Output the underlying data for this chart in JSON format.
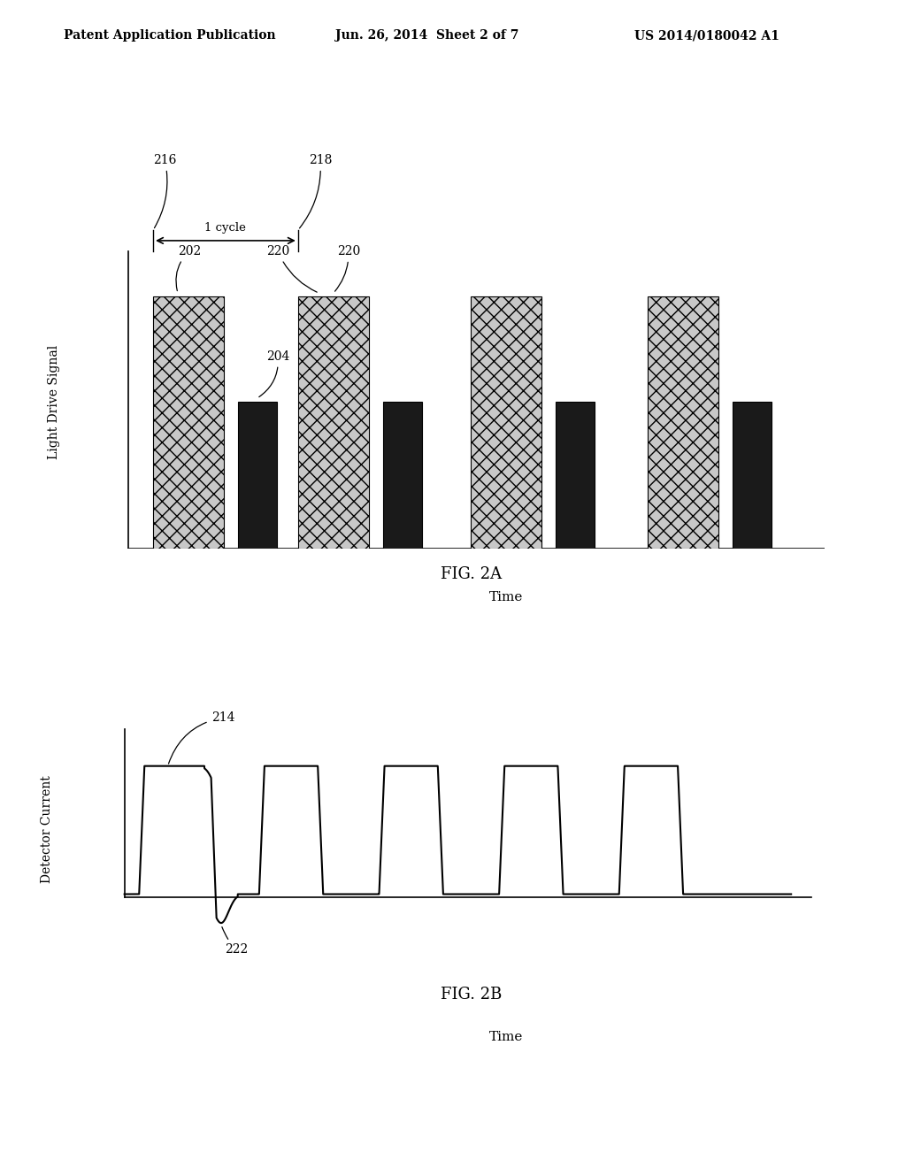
{
  "header_left": "Patent Application Publication",
  "header_mid": "Jun. 26, 2014  Sheet 2 of 7",
  "header_right": "US 2014/0180042 A1",
  "fig2a_label": "FIG. 2A",
  "fig2b_label": "FIG. 2B",
  "fig2a_ylabel": "Light Drive Signal",
  "fig2a_xlabel": "Time",
  "fig2b_ylabel": "Detector Current",
  "fig2b_xlabel": "Time",
  "label_216": "216",
  "label_218": "218",
  "label_202": "202",
  "label_204": "204",
  "label_220a": "220",
  "label_220b": "220",
  "label_214": "214",
  "label_222": "222",
  "cycle_label": "1 cycle",
  "background": "#ffffff"
}
